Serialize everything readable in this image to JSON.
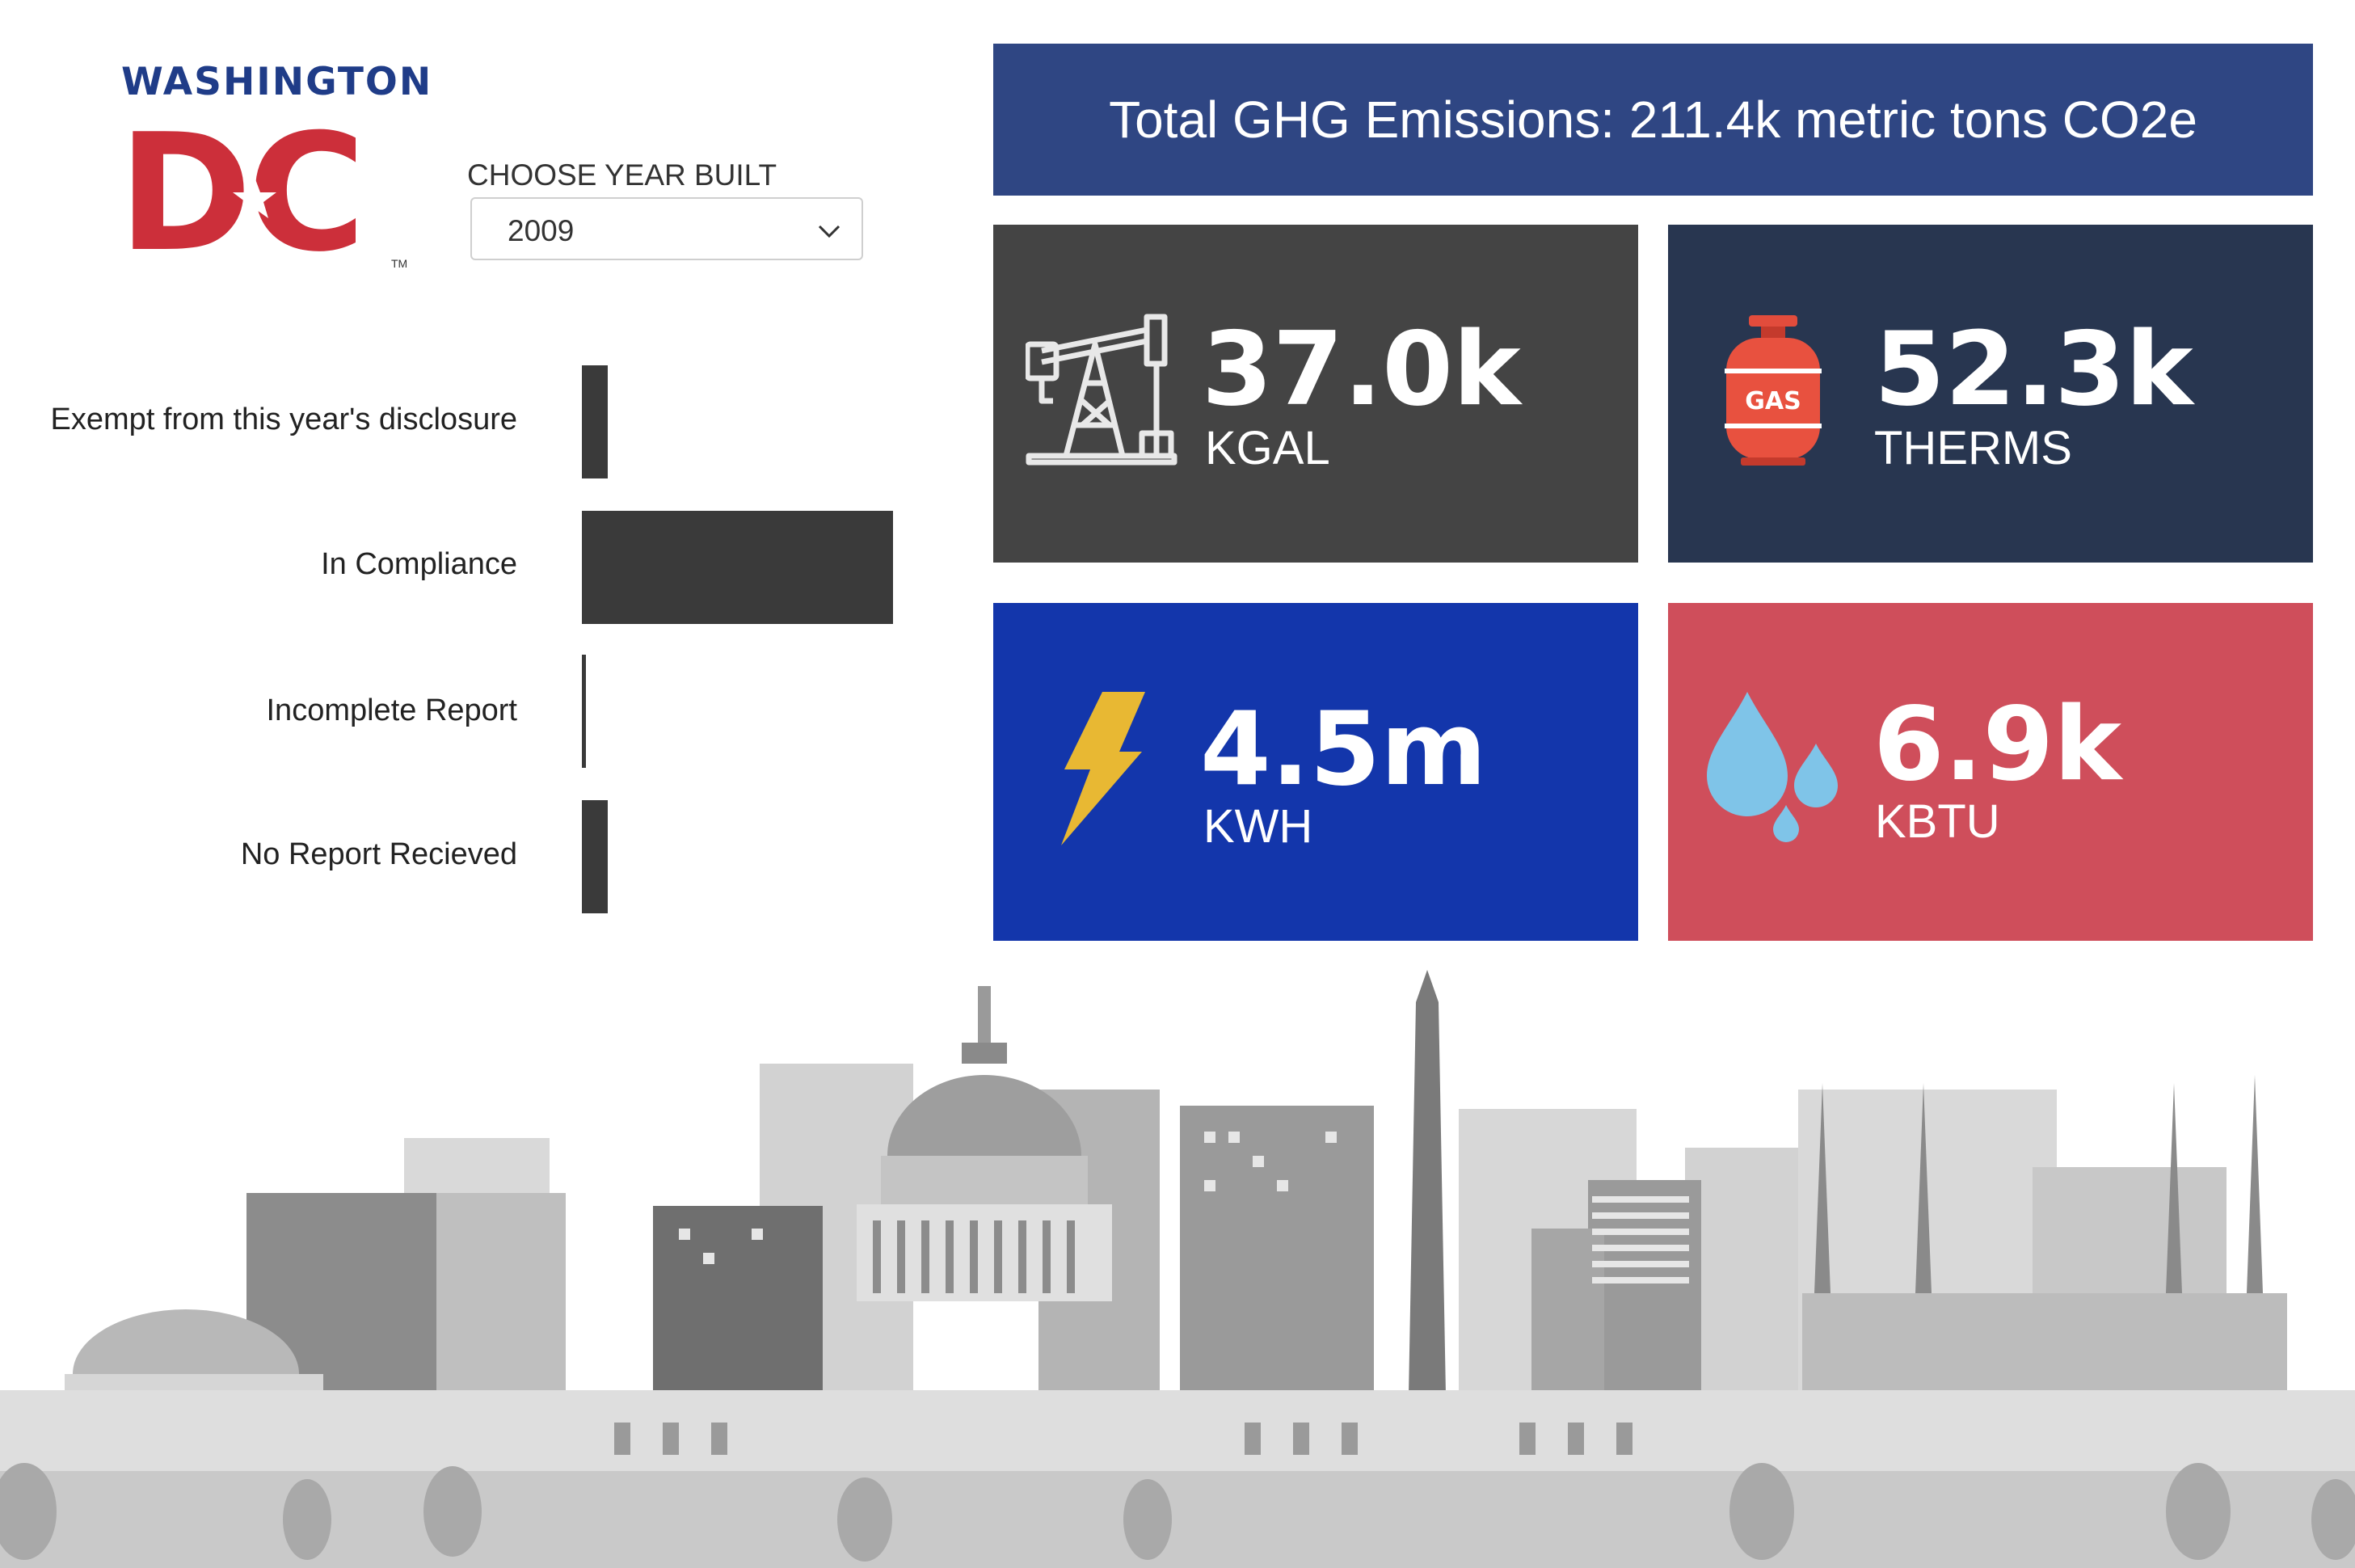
{
  "logo": {
    "top_text": "WASHINGTON",
    "dc_left": "D",
    "dc_right": "C",
    "tm": "TM"
  },
  "slicer": {
    "label": "CHOOSE YEAR BUILT",
    "selected": "2009"
  },
  "chart_data": {
    "type": "bar",
    "orientation": "horizontal",
    "categories": [
      "Exempt from this year's disclosure",
      "In Compliance",
      "Incomplete Report",
      "No Report Recieved"
    ],
    "values": [
      3,
      36,
      0.5,
      3
    ],
    "xlim": [
      0,
      40
    ],
    "grid": false,
    "colors": [
      "#3a3a3a"
    ]
  },
  "banner": {
    "text": "Total GHG Emissions: 211.4k metric tons CO2e"
  },
  "cards": [
    {
      "value": "37.0k",
      "unit": "KGAL",
      "icon": "oil-pump-icon",
      "color": "#444444"
    },
    {
      "value": "52.3k",
      "unit": "THERMS",
      "icon": "gas-cylinder-icon",
      "icon_text": "GAS",
      "color": "#283650"
    },
    {
      "value": "4.5m",
      "unit": "KWH",
      "icon": "lightning-icon",
      "color": "#1336ab"
    },
    {
      "value": "6.9k",
      "unit": "KBTU",
      "icon": "water-drops-icon",
      "color": "#cf4e5b"
    }
  ],
  "illustration": {
    "name": "washington-dc-skyline"
  }
}
